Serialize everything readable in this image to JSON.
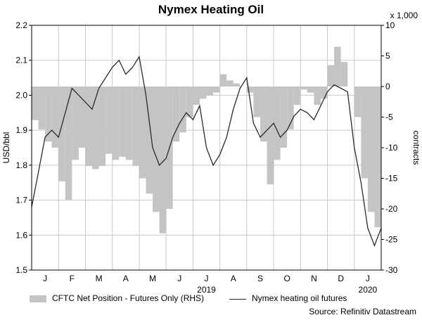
{
  "title": "Nymex Heating Oil",
  "source": "Source: Refinitiv Datastream",
  "legend": {
    "area_label": "CFTC Net Position - Futures Only (RHS)",
    "line_label": "Nymex heating oil futures"
  },
  "colors": {
    "area": "#c4c4c4",
    "line": "#2a2a2a",
    "grid": "#c8c8c8"
  },
  "chart_data": {
    "type": "line",
    "title": "Nymex Heating Oil",
    "ylabel": "USD/bbl",
    "y2label": "contracts",
    "y2unit_label": "x 1,000",
    "ylim": [
      1.5,
      2.2
    ],
    "y2lim": [
      -30,
      10
    ],
    "yticks": [
      "1.5",
      "1.6",
      "1.7",
      "1.8",
      "1.9",
      "2.0",
      "2.1",
      "2.2"
    ],
    "y2ticks": [
      "-30",
      "-25",
      "-20",
      "-15",
      "-10",
      "-5",
      "0",
      "5",
      "10"
    ],
    "month_labels": [
      "J",
      "F",
      "M",
      "A",
      "M",
      "J",
      "J",
      "A",
      "S",
      "O",
      "N",
      "D",
      "J"
    ],
    "year_labels": [
      {
        "label": "2019",
        "month_index": 6
      },
      {
        "label": "2020",
        "month_index": 12
      }
    ],
    "grid": true,
    "series": [
      {
        "name": "CFTC Net Position - Futures Only (RHS)",
        "axis": "right",
        "style": "area",
        "x_month": [
          0.0,
          0.25,
          0.5,
          0.75,
          1.0,
          1.25,
          1.5,
          1.75,
          2.0,
          2.25,
          2.5,
          2.75,
          3.0,
          3.25,
          3.5,
          3.75,
          4.0,
          4.25,
          4.5,
          4.75,
          5.0,
          5.25,
          5.5,
          5.75,
          6.0,
          6.25,
          6.5,
          6.75,
          7.0,
          7.25,
          7.5,
          7.75,
          8.0,
          8.25,
          8.5,
          8.75,
          9.0,
          9.25,
          9.5,
          9.75,
          10.0,
          10.25,
          10.5,
          10.75,
          11.0,
          11.25,
          11.5,
          11.75,
          12.0,
          12.25,
          12.5,
          12.75,
          13.0
        ],
        "values": [
          -5.5,
          -7.0,
          -9.0,
          -10.0,
          -15.5,
          -18.5,
          -12.0,
          -10.0,
          -13.0,
          -13.5,
          -13.0,
          -11.0,
          -12.0,
          -11.5,
          -12.0,
          -13.0,
          -15.0,
          -17.5,
          -20.5,
          -24.0,
          -20.0,
          -9.0,
          -7.5,
          -5.0,
          -3.0,
          -2.0,
          -1.5,
          -1.0,
          2.0,
          1.0,
          0.5,
          0.0,
          -1.0,
          -5.0,
          -9.0,
          -16.0,
          -12.0,
          -10.0,
          -7.0,
          -3.0,
          -0.5,
          -1.0,
          -3.0,
          -2.0,
          3.5,
          6.5,
          4.0,
          0.0,
          -5.0,
          -15.0,
          -20.5,
          -23.0,
          -28.5
        ]
      },
      {
        "name": "Nymex heating oil futures",
        "axis": "left",
        "style": "line",
        "x_month": [
          0.0,
          0.25,
          0.5,
          0.75,
          1.0,
          1.25,
          1.5,
          1.75,
          2.0,
          2.25,
          2.5,
          2.75,
          3.0,
          3.25,
          3.5,
          3.75,
          4.0,
          4.25,
          4.5,
          4.75,
          5.0,
          5.25,
          5.5,
          5.75,
          6.0,
          6.25,
          6.5,
          6.75,
          7.0,
          7.25,
          7.5,
          7.75,
          8.0,
          8.25,
          8.5,
          8.75,
          9.0,
          9.25,
          9.5,
          9.75,
          10.0,
          10.25,
          10.5,
          10.75,
          11.0,
          11.25,
          11.5,
          11.75,
          12.0,
          12.25,
          12.5,
          12.75,
          13.0
        ],
        "values": [
          1.68,
          1.78,
          1.88,
          1.9,
          1.88,
          1.95,
          2.02,
          2.0,
          1.98,
          1.96,
          2.02,
          2.05,
          2.08,
          2.1,
          2.06,
          2.08,
          2.11,
          2.0,
          1.85,
          1.8,
          1.82,
          1.88,
          1.92,
          1.95,
          1.93,
          1.97,
          1.85,
          1.8,
          1.83,
          1.88,
          1.96,
          2.02,
          2.05,
          1.92,
          1.88,
          1.9,
          1.92,
          1.88,
          1.9,
          1.94,
          1.96,
          1.95,
          1.93,
          1.97,
          2.01,
          2.03,
          2.02,
          2.01,
          1.85,
          1.75,
          1.62,
          1.57,
          1.62
        ]
      }
    ]
  }
}
